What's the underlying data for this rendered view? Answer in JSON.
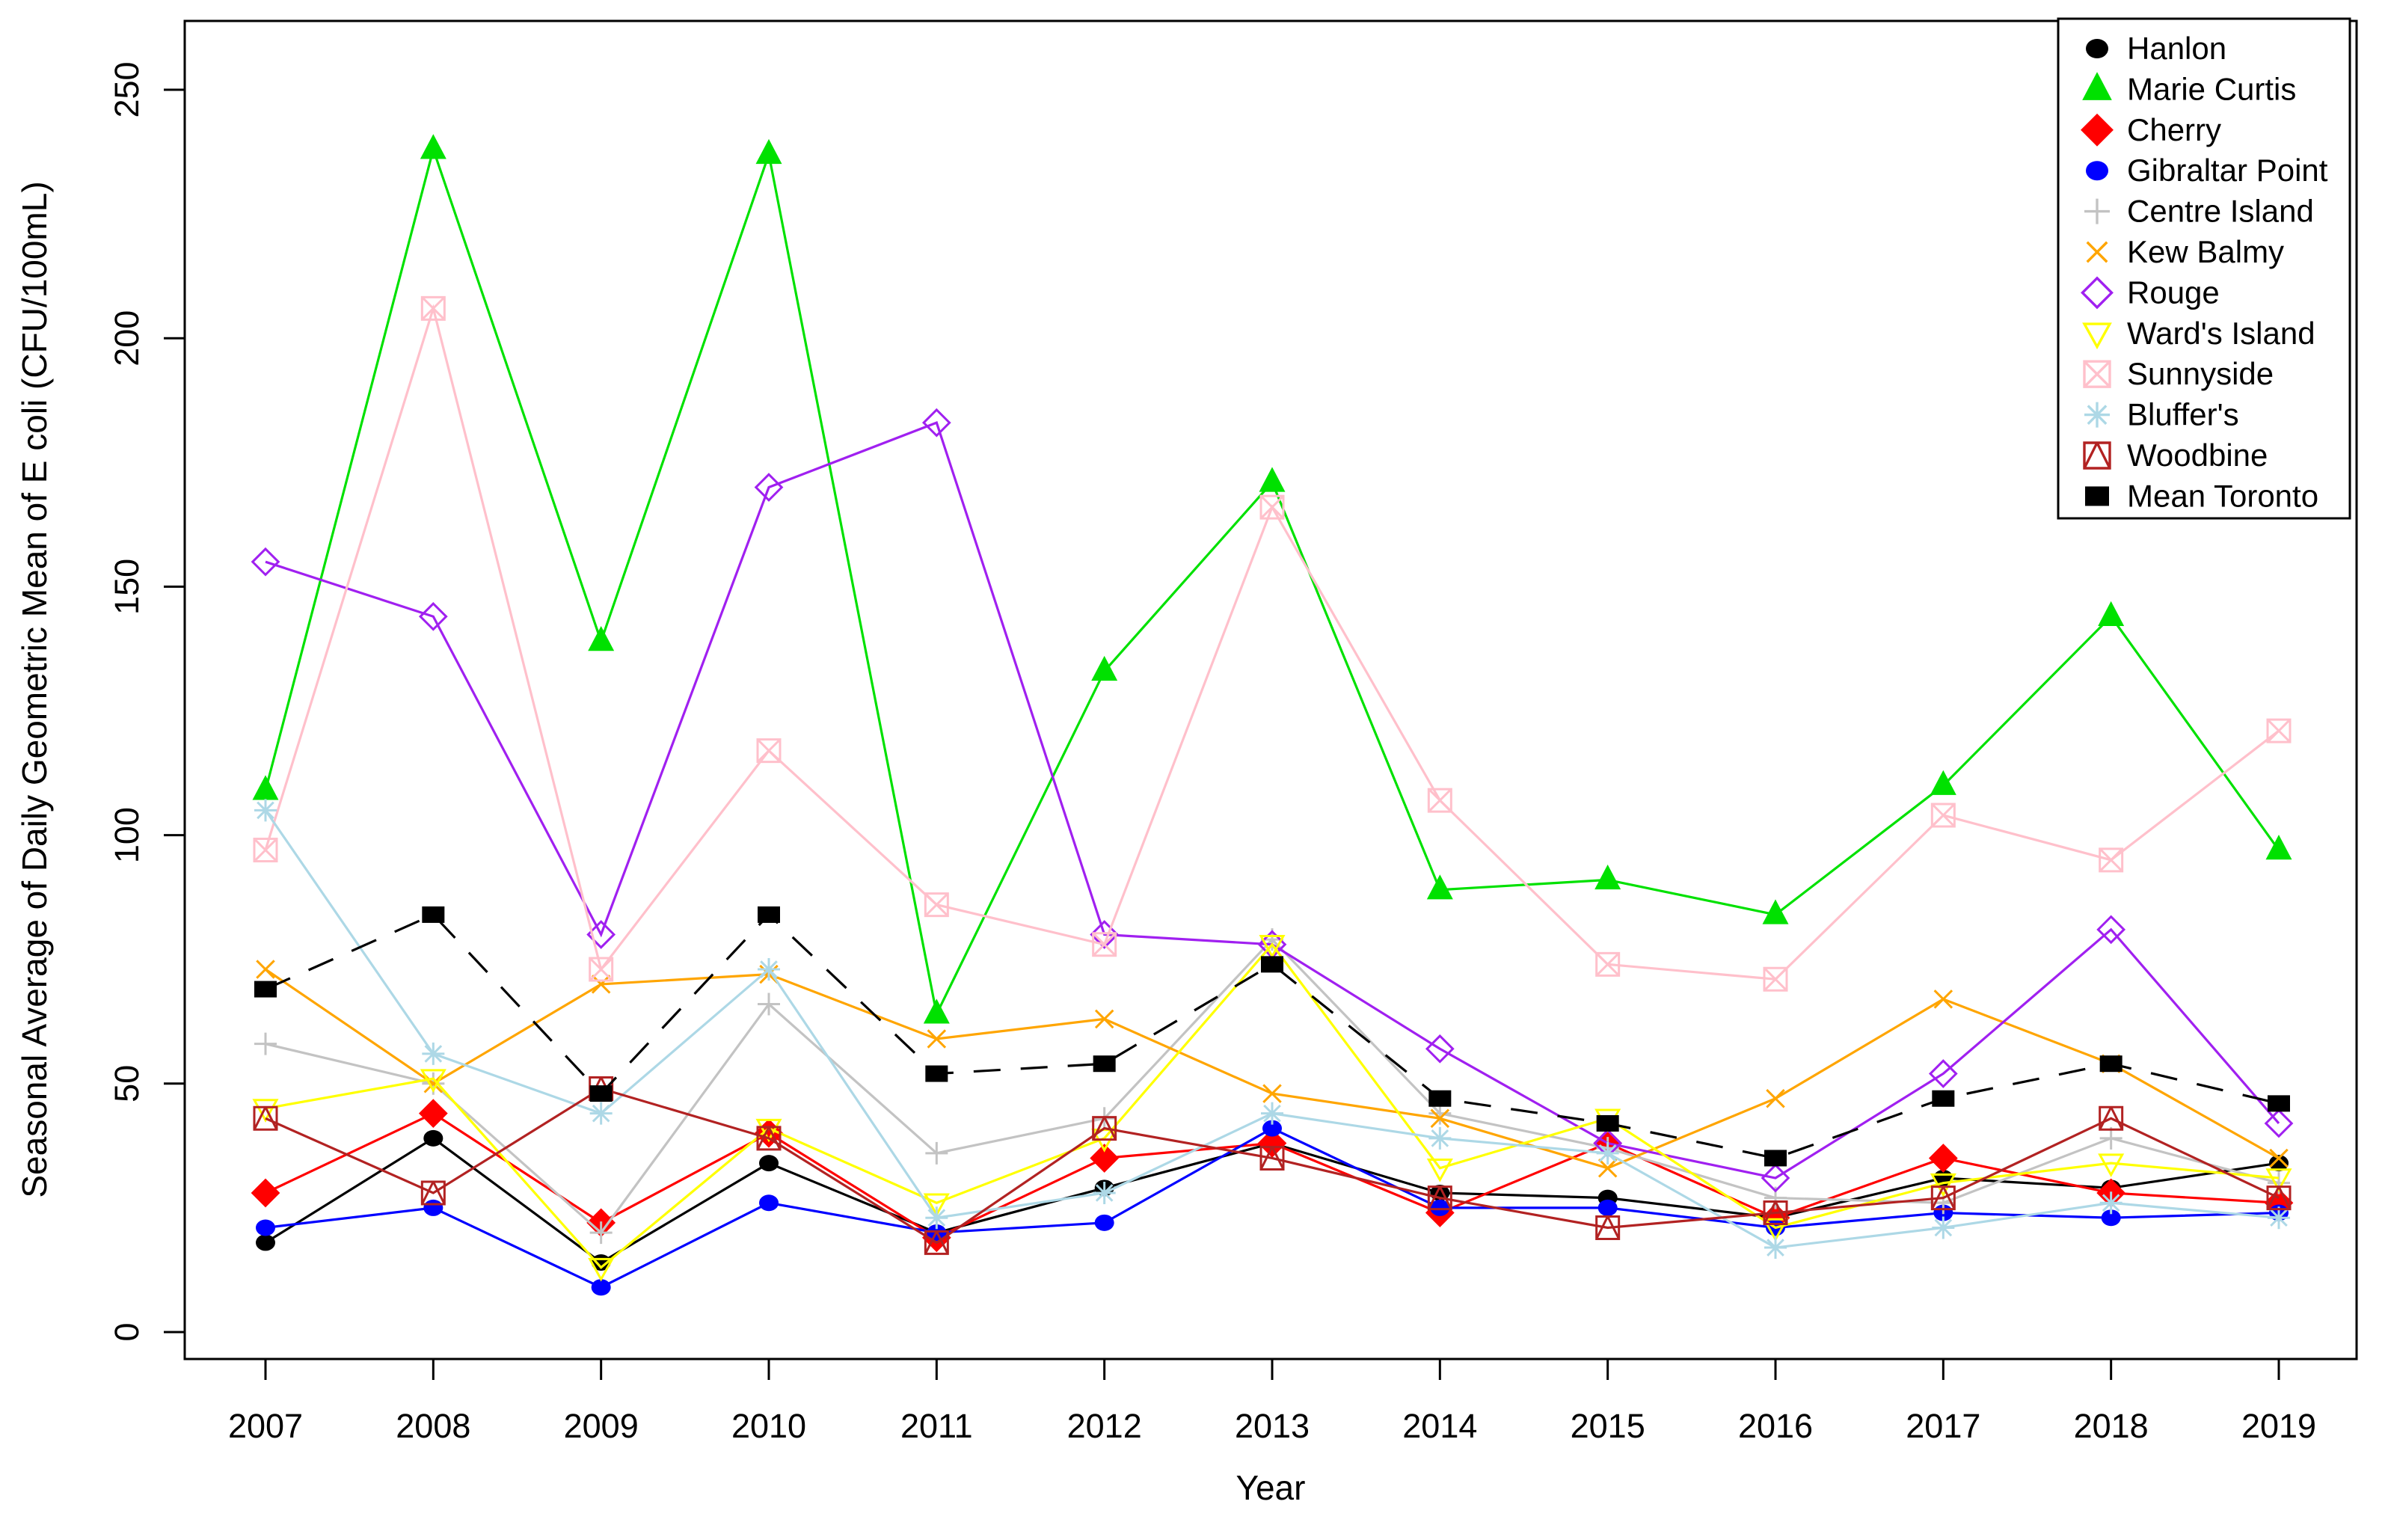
{
  "chart_data": {
    "type": "line",
    "title": "",
    "xlabel": "Year",
    "ylabel": "Seasonal Average of Daily Geometric Mean of E coli (CFU/100mL)",
    "x": [
      "2007",
      "2008",
      "2009",
      "2010",
      "2011",
      "2012",
      "2013",
      "2014",
      "2015",
      "2016",
      "2017",
      "2018",
      "2019"
    ],
    "yticks": [
      0,
      50,
      100,
      150,
      200,
      250
    ],
    "ylim": [
      0,
      263
    ],
    "grid": false,
    "legend_position": "top-right",
    "series": [
      {
        "name": "Hanlon",
        "color": "#000000",
        "marker": "circle-filled",
        "line": "solid",
        "values": [
          18,
          39,
          14,
          34,
          20,
          29,
          38,
          28,
          27,
          23,
          31,
          29,
          34
        ]
      },
      {
        "name": "Marie Curtis",
        "color": "#00E100",
        "marker": "triangle-up-filled",
        "line": "solid",
        "values": [
          109,
          238,
          139,
          237,
          64,
          133,
          171,
          89,
          91,
          84,
          110,
          144,
          97
        ]
      },
      {
        "name": "Cherry",
        "color": "#FF0000",
        "marker": "diamond-filled",
        "line": "solid",
        "values": [
          28,
          44,
          22,
          40,
          19,
          35,
          38,
          24,
          38,
          23,
          35,
          28,
          26
        ]
      },
      {
        "name": "Gibraltar Point",
        "color": "#0000FF",
        "marker": "circle-filled",
        "line": "solid",
        "values": [
          21,
          25,
          9,
          26,
          20,
          22,
          41,
          25,
          25,
          21,
          24,
          23,
          24
        ]
      },
      {
        "name": "Centre Island",
        "color": "#C3C3C3",
        "marker": "plus",
        "line": "solid",
        "values": [
          58,
          50,
          20,
          66,
          36,
          43,
          79,
          44,
          37,
          27,
          26,
          39,
          30
        ]
      },
      {
        "name": "Kew Balmy",
        "color": "#FFA500",
        "marker": "x",
        "line": "solid",
        "values": [
          73,
          50,
          70,
          72,
          59,
          63,
          48,
          43,
          33,
          47,
          67,
          54,
          35
        ]
      },
      {
        "name": "Rouge",
        "color": "#A020F0",
        "marker": "diamond-open",
        "line": "solid",
        "values": [
          155,
          144,
          80,
          170,
          183,
          80,
          78,
          57,
          38,
          31,
          52,
          81,
          42
        ]
      },
      {
        "name": "Ward's Island",
        "color": "#FFFF00",
        "marker": "triangle-down-open",
        "line": "solid",
        "values": [
          45,
          51,
          13,
          41,
          26,
          39,
          78,
          33,
          43,
          21,
          30,
          34,
          31
        ]
      },
      {
        "name": "Sunnyside",
        "color": "#FFC0CB",
        "marker": "square-x",
        "line": "solid",
        "values": [
          97,
          206,
          73,
          117,
          86,
          78,
          166,
          107,
          74,
          71,
          104,
          95,
          121
        ]
      },
      {
        "name": "Bluffer's",
        "color": "#ADD8E6",
        "marker": "asterisk",
        "line": "solid",
        "values": [
          105,
          56,
          44,
          73,
          23,
          28,
          44,
          39,
          36,
          17,
          21,
          26,
          23
        ]
      },
      {
        "name": "Woodbine",
        "color": "#B22222",
        "marker": "square-triangle",
        "line": "solid",
        "values": [
          43,
          28,
          49,
          39,
          18,
          41,
          35,
          27,
          21,
          24,
          27,
          43,
          27
        ]
      },
      {
        "name": "Mean Toronto",
        "color": "#000000",
        "marker": "square-filled",
        "line": "dashed",
        "values": [
          69,
          84,
          48,
          84,
          52,
          54,
          74,
          47,
          42,
          35,
          47,
          54,
          46
        ]
      }
    ]
  }
}
